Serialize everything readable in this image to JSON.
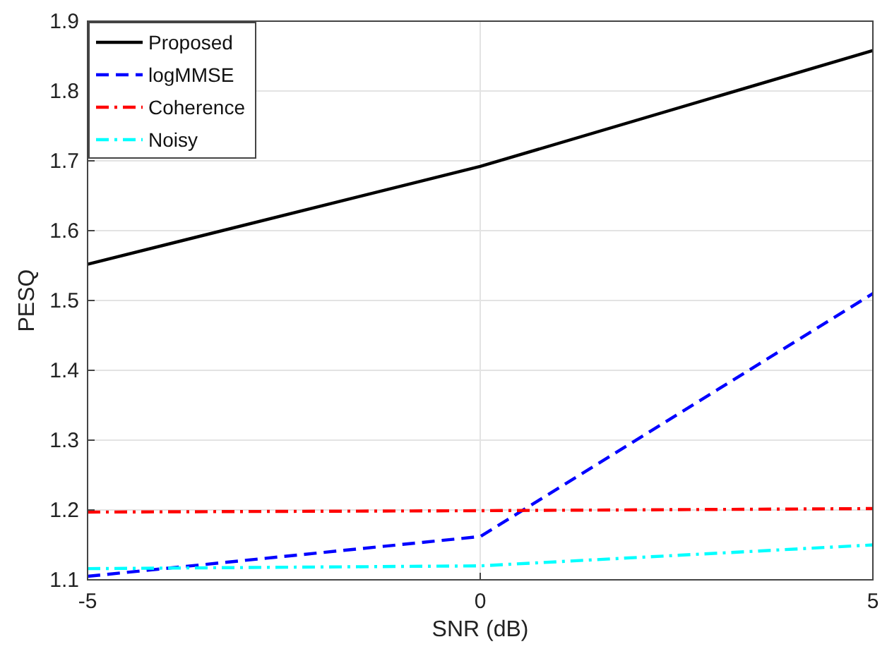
{
  "chart_data": {
    "type": "line",
    "xlabel": "SNR (dB)",
    "ylabel": "PESQ",
    "x": [
      -5,
      0,
      5
    ],
    "xlim": [
      -5,
      5
    ],
    "xticks": [
      -5,
      0,
      5
    ],
    "ylim": [
      1.1,
      1.9
    ],
    "yticks": [
      1.1,
      1.2,
      1.3,
      1.4,
      1.5,
      1.6,
      1.7,
      1.8,
      1.9
    ],
    "grid": true,
    "legend": "top left",
    "marker": "none",
    "series": [
      {
        "name": "Proposed",
        "color": "#000000",
        "line_style": "solid",
        "values": [
          1.552,
          1.692,
          1.858
        ]
      },
      {
        "name": "logMMSE",
        "color": "#0000ff",
        "line_style": "dashed",
        "values": [
          1.105,
          1.162,
          1.51
        ]
      },
      {
        "name": "Coherence",
        "color": "#ff0000",
        "line_style": "dashdot",
        "values": [
          1.197,
          1.199,
          1.202
        ]
      },
      {
        "name": "Noisy",
        "color": "#00ffff",
        "line_style": "dashdot",
        "values": [
          1.116,
          1.12,
          1.15
        ]
      }
    ]
  }
}
